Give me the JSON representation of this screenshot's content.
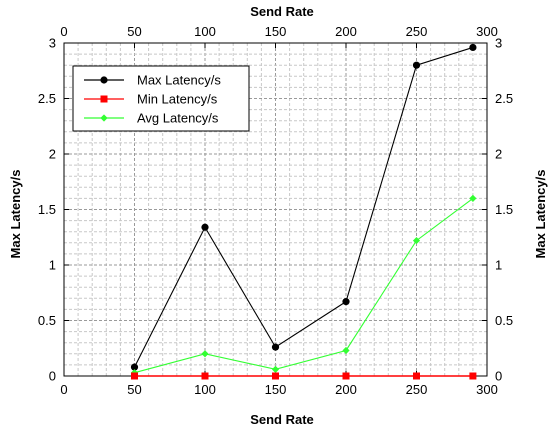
{
  "chart_data": {
    "type": "line",
    "xlabel": "Send Rate",
    "ylabel": "Max Latency/s",
    "xlim": [
      0,
      300
    ],
    "ylim": [
      0,
      3
    ],
    "x_ticks": [
      "0",
      "50",
      "100",
      "150",
      "200",
      "250",
      "300"
    ],
    "y_ticks": [
      "0",
      "0.5",
      "1",
      "1.5",
      "2",
      "2.5",
      "3"
    ],
    "grid": true,
    "mirror_axes": true,
    "legend_position": "top-left",
    "x": [
      50,
      100,
      150,
      200,
      250,
      290
    ],
    "series": [
      {
        "name": "Max Latency/s",
        "color": "#000000",
        "marker": "circle",
        "values": [
          0.08,
          1.34,
          0.26,
          0.67,
          2.8,
          2.96
        ]
      },
      {
        "name": "Min Latency/s",
        "color": "#ff0000",
        "marker": "square",
        "values": [
          0.0,
          0.0,
          0.0,
          0.0,
          0.0,
          0.0
        ]
      },
      {
        "name": "Avg Latency/s",
        "color": "#33ff33",
        "marker": "diamond",
        "values": [
          0.03,
          0.2,
          0.06,
          0.23,
          1.22,
          1.6
        ]
      }
    ]
  }
}
